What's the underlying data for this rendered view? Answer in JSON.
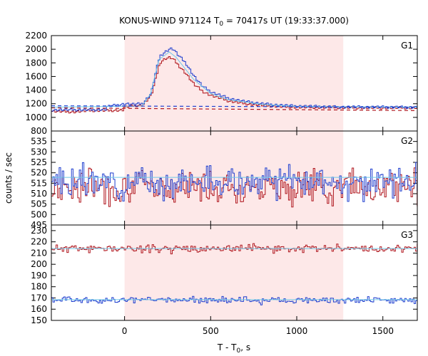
{
  "chart_data": {
    "type": "line",
    "title": {
      "prefix": "KONUS-WIND 971124 T",
      "subscript": "0",
      "suffix": " = 70417s UT (19:33:37.000)"
    },
    "xlabel": {
      "prefix": "T - T",
      "subscript": "0",
      "suffix": ", s"
    },
    "ylabel": "counts / sec",
    "xlim": [
      -425,
      1700
    ],
    "xticks": [
      0,
      500,
      1000,
      1500
    ],
    "shaded_interval": [
      0,
      1270
    ],
    "colors": {
      "shade": "#fde8e8",
      "red_series": "#b0171f",
      "blue_series": "#1f3fcf",
      "fit_line": "#6fc8e8",
      "background_dashed_red": "#b0171f",
      "background_dashed_blue": "#1f3fcf"
    },
    "panels": [
      {
        "label": "G1",
        "ylim": [
          800,
          2200
        ],
        "yticks": [
          800,
          1000,
          1200,
          1400,
          1600,
          1800,
          2000,
          2200
        ],
        "series": [
          {
            "color_key": "red_series",
            "points": [
              [
                -425,
                1130
              ],
              [
                -300,
                1120
              ],
              [
                -200,
                1140
              ],
              [
                -100,
                1140
              ],
              [
                0,
                1150
              ],
              [
                50,
                1170
              ],
              [
                100,
                1180
              ],
              [
                150,
                1320
              ],
              [
                180,
                1600
              ],
              [
                200,
                1800
              ],
              [
                230,
                1860
              ],
              [
                260,
                1880
              ],
              [
                280,
                1850
              ],
              [
                300,
                1790
              ],
              [
                350,
                1650
              ],
              [
                400,
                1480
              ],
              [
                450,
                1380
              ],
              [
                500,
                1320
              ],
              [
                600,
                1240
              ],
              [
                700,
                1200
              ],
              [
                800,
                1175
              ],
              [
                900,
                1160
              ],
              [
                1000,
                1150
              ],
              [
                1200,
                1145
              ],
              [
                1500,
                1140
              ],
              [
                1700,
                1140
              ]
            ]
          },
          {
            "color_key": "blue_series",
            "points": [
              [
                -425,
                1150
              ],
              [
                -300,
                1150
              ],
              [
                -200,
                1150
              ],
              [
                -100,
                1160
              ],
              [
                0,
                1200
              ],
              [
                50,
                1190
              ],
              [
                100,
                1200
              ],
              [
                150,
                1350
              ],
              [
                180,
                1700
              ],
              [
                200,
                1900
              ],
              [
                230,
                1960
              ],
              [
                260,
                2010
              ],
              [
                280,
                2000
              ],
              [
                300,
                1930
              ],
              [
                350,
                1800
              ],
              [
                400,
                1600
              ],
              [
                450,
                1450
              ],
              [
                500,
                1370
              ],
              [
                600,
                1280
              ],
              [
                700,
                1230
              ],
              [
                800,
                1200
              ],
              [
                900,
                1180
              ],
              [
                1000,
                1165
              ],
              [
                1200,
                1155
              ],
              [
                1500,
                1150
              ],
              [
                1700,
                1150
              ]
            ]
          },
          {
            "color_key": "fit_line",
            "points": [
              [
                -425,
                1150
              ],
              [
                100,
                1165
              ],
              [
                150,
                1340
              ],
              [
                200,
                1850
              ],
              [
                260,
                1960
              ],
              [
                300,
                1880
              ],
              [
                400,
                1560
              ],
              [
                500,
                1350
              ],
              [
                600,
                1260
              ],
              [
                800,
                1190
              ],
              [
                1000,
                1160
              ],
              [
                1700,
                1150
              ]
            ]
          }
        ],
        "dashed_lines": [
          {
            "color_key": "background_dashed_blue",
            "y": [
              1170,
              1150
            ]
          },
          {
            "color_key": "background_dashed_red",
            "y": [
              1140,
              1100
            ]
          }
        ]
      },
      {
        "label": "G2",
        "ylim": [
          495,
          540
        ],
        "yticks": [
          495,
          500,
          505,
          510,
          515,
          520,
          525,
          530,
          535
        ],
        "series": [
          {
            "color_key": "red_series",
            "mean": 513.5,
            "spread": 8,
            "seed": 7
          },
          {
            "color_key": "blue_series",
            "mean": 515.5,
            "spread": 7,
            "seed": 3
          }
        ],
        "fit_level": 517.8
      },
      {
        "label": "G3",
        "ylim": [
          150,
          235
        ],
        "yticks": [
          150,
          160,
          170,
          180,
          190,
          200,
          210,
          220,
          230
        ],
        "series": [
          {
            "color_key": "red_series",
            "mean": 214,
            "spread": 3.5,
            "seed": 11
          },
          {
            "color_key": "blue_series",
            "mean": 168,
            "spread": 3,
            "seed": 5
          }
        ],
        "fit_levels": [
          214,
          168.5
        ]
      }
    ]
  }
}
